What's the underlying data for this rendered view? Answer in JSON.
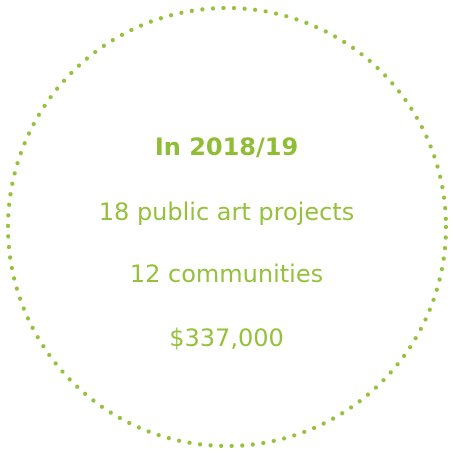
{
  "colors": {
    "accent": "#95c13d",
    "background": "#ffffff"
  },
  "badge": {
    "heading": "In 2018/19",
    "stats": [
      "18 public art projects",
      "12 communities",
      "$337,000"
    ]
  }
}
